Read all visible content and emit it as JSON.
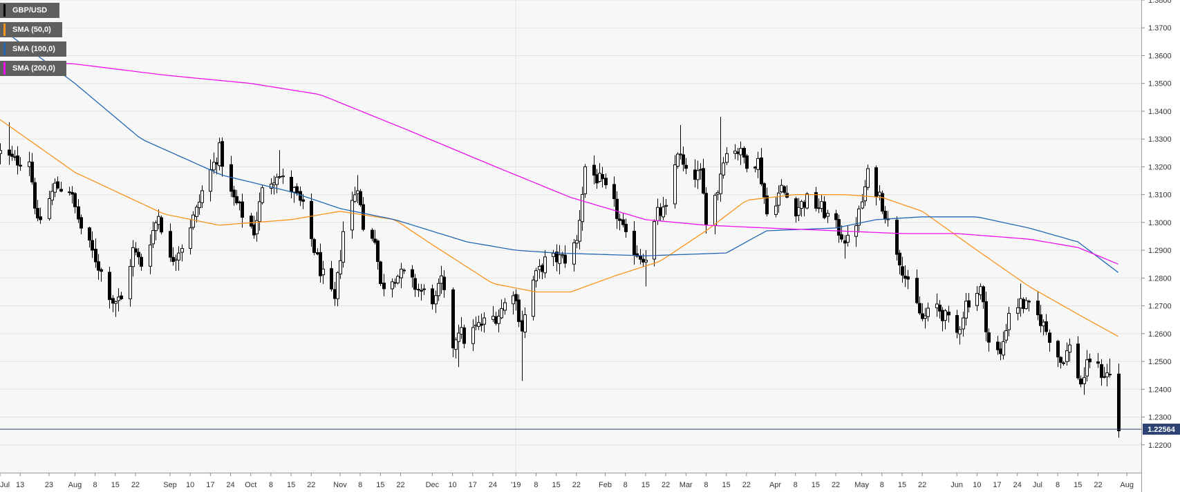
{
  "chart_data": {
    "type": "candlestick",
    "symbol": "GBP/USD",
    "last_price_label": "1.22564",
    "last_price": 1.22564,
    "ylim": [
      1.21,
      1.38
    ],
    "y_ticks": [
      "1.2200",
      "1.2300",
      "1.2400",
      "1.2500",
      "1.2600",
      "1.2700",
      "1.2800",
      "1.2900",
      "1.3000",
      "1.3100",
      "1.3200",
      "1.3300",
      "1.3400",
      "1.3500",
      "1.3600",
      "1.3700",
      "1.3800"
    ],
    "x_ticks": [
      {
        "date": "2018-07-06",
        "label": "Jul"
      },
      {
        "date": "2018-07-13",
        "label": "13"
      },
      {
        "date": "2018-07-23",
        "label": "23"
      },
      {
        "date": "2018-08-01",
        "label": "Aug"
      },
      {
        "date": "2018-08-08",
        "label": "8"
      },
      {
        "date": "2018-08-15",
        "label": "15"
      },
      {
        "date": "2018-08-22",
        "label": "22"
      },
      {
        "date": "2018-09-03",
        "label": "Sep"
      },
      {
        "date": "2018-09-10",
        "label": "10"
      },
      {
        "date": "2018-09-17",
        "label": "17"
      },
      {
        "date": "2018-09-24",
        "label": "24"
      },
      {
        "date": "2018-10-01",
        "label": "Oct"
      },
      {
        "date": "2018-10-08",
        "label": "8"
      },
      {
        "date": "2018-10-15",
        "label": "15"
      },
      {
        "date": "2018-10-22",
        "label": "22"
      },
      {
        "date": "2018-11-01",
        "label": "Nov"
      },
      {
        "date": "2018-11-08",
        "label": "8"
      },
      {
        "date": "2018-11-15",
        "label": "15"
      },
      {
        "date": "2018-11-22",
        "label": "22"
      },
      {
        "date": "2018-12-03",
        "label": "Dec"
      },
      {
        "date": "2018-12-10",
        "label": "10"
      },
      {
        "date": "2018-12-17",
        "label": "17"
      },
      {
        "date": "2018-12-24",
        "label": "24"
      },
      {
        "date": "2019-01-01",
        "label": "'19"
      },
      {
        "date": "2019-01-08",
        "label": "8"
      },
      {
        "date": "2019-01-15",
        "label": "15"
      },
      {
        "date": "2019-01-22",
        "label": "22"
      },
      {
        "date": "2019-02-01",
        "label": "Feb"
      },
      {
        "date": "2019-02-08",
        "label": "8"
      },
      {
        "date": "2019-02-15",
        "label": "15"
      },
      {
        "date": "2019-02-22",
        "label": "22"
      },
      {
        "date": "2019-03-01",
        "label": "Mar"
      },
      {
        "date": "2019-03-08",
        "label": "8"
      },
      {
        "date": "2019-03-15",
        "label": "15"
      },
      {
        "date": "2019-03-22",
        "label": "22"
      },
      {
        "date": "2019-04-01",
        "label": "Apr"
      },
      {
        "date": "2019-04-08",
        "label": "8"
      },
      {
        "date": "2019-04-15",
        "label": "15"
      },
      {
        "date": "2019-04-22",
        "label": "22"
      },
      {
        "date": "2019-05-01",
        "label": "May"
      },
      {
        "date": "2019-05-08",
        "label": "8"
      },
      {
        "date": "2019-05-15",
        "label": "15"
      },
      {
        "date": "2019-05-22",
        "label": "22"
      },
      {
        "date": "2019-06-03",
        "label": "Jun"
      },
      {
        "date": "2019-06-10",
        "label": "10"
      },
      {
        "date": "2019-06-17",
        "label": "17"
      },
      {
        "date": "2019-06-24",
        "label": "24"
      },
      {
        "date": "2019-07-01",
        "label": "Jul"
      },
      {
        "date": "2019-07-08",
        "label": "8"
      },
      {
        "date": "2019-07-15",
        "label": "15"
      },
      {
        "date": "2019-07-22",
        "label": "22"
      },
      {
        "date": "2019-08-01",
        "label": "Aug"
      }
    ],
    "xlim": [
      "2018-07-06",
      "2019-08-06"
    ],
    "close_anchors": [
      [
        "2018-07-06",
        1.325
      ],
      [
        "2018-07-11",
        1.322
      ],
      [
        "2018-07-16",
        1.323
      ],
      [
        "2018-07-19",
        1.299
      ],
      [
        "2018-07-25",
        1.313
      ],
      [
        "2018-07-30",
        1.312
      ],
      [
        "2018-08-03",
        1.298
      ],
      [
        "2018-08-08",
        1.287
      ],
      [
        "2018-08-14",
        1.272
      ],
      [
        "2018-08-17",
        1.272
      ],
      [
        "2018-08-21",
        1.29
      ],
      [
        "2018-08-24",
        1.285
      ],
      [
        "2018-08-30",
        1.303
      ],
      [
        "2018-09-03",
        1.286
      ],
      [
        "2018-09-07",
        1.292
      ],
      [
        "2018-09-12",
        1.304
      ],
      [
        "2018-09-14",
        1.311
      ],
      [
        "2018-09-20",
        1.326
      ],
      [
        "2018-09-24",
        1.31
      ],
      [
        "2018-09-28",
        1.303
      ],
      [
        "2018-10-02",
        1.297
      ],
      [
        "2018-10-05",
        1.311
      ],
      [
        "2018-10-10",
        1.318
      ],
      [
        "2018-10-12",
        1.315
      ],
      [
        "2018-10-16",
        1.311
      ],
      [
        "2018-10-19",
        1.305
      ],
      [
        "2018-10-25",
        1.283
      ],
      [
        "2018-10-30",
        1.271
      ],
      [
        "2018-11-02",
        1.297
      ],
      [
        "2018-11-07",
        1.314
      ],
      [
        "2018-11-09",
        1.297
      ],
      [
        "2018-11-13",
        1.295
      ],
      [
        "2018-11-15",
        1.277
      ],
      [
        "2018-11-20",
        1.281
      ],
      [
        "2018-11-23",
        1.281
      ],
      [
        "2018-11-28",
        1.276
      ],
      [
        "2018-12-04",
        1.272
      ],
      [
        "2018-12-06",
        1.279
      ],
      [
        "2018-12-10",
        1.256
      ],
      [
        "2018-12-12",
        1.262
      ],
      [
        "2018-12-14",
        1.258
      ],
      [
        "2018-12-18",
        1.262
      ],
      [
        "2018-12-21",
        1.264
      ],
      [
        "2018-12-26",
        1.267
      ],
      [
        "2018-12-31",
        1.276
      ],
      [
        "2019-01-03",
        1.262
      ],
      [
        "2019-01-07",
        1.279
      ],
      [
        "2019-01-11",
        1.286
      ],
      [
        "2019-01-15",
        1.287
      ],
      [
        "2019-01-18",
        1.287
      ],
      [
        "2019-01-22",
        1.293
      ],
      [
        "2019-01-25",
        1.32
      ],
      [
        "2019-01-30",
        1.315
      ],
      [
        "2019-02-04",
        1.306
      ],
      [
        "2019-02-08",
        1.294
      ],
      [
        "2019-02-13",
        1.288
      ],
      [
        "2019-02-15",
        1.288
      ],
      [
        "2019-02-19",
        1.303
      ],
      [
        "2019-02-22",
        1.304
      ],
      [
        "2019-02-26",
        1.326
      ],
      [
        "2019-03-01",
        1.317
      ],
      [
        "2019-03-06",
        1.317
      ],
      [
        "2019-03-08",
        1.302
      ],
      [
        "2019-03-12",
        1.312
      ],
      [
        "2019-03-14",
        1.324
      ],
      [
        "2019-03-18",
        1.327
      ],
      [
        "2019-03-22",
        1.322
      ],
      [
        "2019-03-26",
        1.322
      ],
      [
        "2019-03-29",
        1.303
      ],
      [
        "2019-04-03",
        1.312
      ],
      [
        "2019-04-08",
        1.305
      ],
      [
        "2019-04-12",
        1.308
      ],
      [
        "2019-04-17",
        1.305
      ],
      [
        "2019-04-23",
        1.297
      ],
      [
        "2019-04-26",
        1.293
      ],
      [
        "2019-04-30",
        1.303
      ],
      [
        "2019-05-03",
        1.317
      ],
      [
        "2019-05-07",
        1.31
      ],
      [
        "2019-05-10",
        1.3
      ],
      [
        "2019-05-14",
        1.287
      ],
      [
        "2019-05-17",
        1.277
      ],
      [
        "2019-05-22",
        1.265
      ],
      [
        "2019-05-27",
        1.27
      ],
      [
        "2019-06-03",
        1.26
      ],
      [
        "2019-06-06",
        1.271
      ],
      [
        "2019-06-11",
        1.276
      ],
      [
        "2019-06-14",
        1.257
      ],
      [
        "2019-06-18",
        1.252
      ],
      [
        "2019-06-21",
        1.268
      ],
      [
        "2019-06-25",
        1.271
      ],
      [
        "2019-06-28",
        1.269
      ],
      [
        "2019-07-02",
        1.265
      ],
      [
        "2019-07-05",
        1.259
      ],
      [
        "2019-07-09",
        1.25
      ],
      [
        "2019-07-12",
        1.255
      ],
      [
        "2019-07-16",
        1.242
      ],
      [
        "2019-07-19",
        1.251
      ],
      [
        "2019-07-23",
        1.246
      ],
      [
        "2019-07-26",
        1.245
      ],
      [
        "2019-07-29",
        1.2227
      ]
    ],
    "lows": [
      [
        "2018-08-15",
        1.266
      ],
      [
        "2018-10-30",
        1.27
      ],
      [
        "2018-12-12",
        1.248
      ],
      [
        "2019-01-03",
        1.243
      ],
      [
        "2019-02-15",
        1.277
      ],
      [
        "2019-03-08",
        1.296
      ],
      [
        "2019-04-25",
        1.287
      ],
      [
        "2019-06-18",
        1.251
      ],
      [
        "2019-07-17",
        1.238
      ],
      [
        "2019-07-29",
        1.2227
      ]
    ],
    "highs": [
      [
        "2018-07-09",
        1.336
      ],
      [
        "2018-09-20",
        1.33
      ],
      [
        "2018-10-11",
        1.326
      ],
      [
        "2018-11-07",
        1.317
      ],
      [
        "2019-01-25",
        1.321
      ],
      [
        "2019-02-27",
        1.335
      ],
      [
        "2019-03-13",
        1.338
      ],
      [
        "2019-05-03",
        1.318
      ],
      [
        "2019-06-25",
        1.278
      ],
      [
        "2019-07-26",
        1.251
      ]
    ],
    "series": [
      {
        "name": "GBP/USD",
        "color": "#000000",
        "style": "candlestick"
      },
      {
        "name": "SMA (50,0)",
        "color": "#f7941d",
        "points": [
          [
            "2018-07-06",
            1.337
          ],
          [
            "2018-08-01",
            1.318
          ],
          [
            "2018-09-01",
            1.303
          ],
          [
            "2018-09-20",
            1.299
          ],
          [
            "2018-10-15",
            1.301
          ],
          [
            "2018-11-01",
            1.304
          ],
          [
            "2018-11-20",
            1.301
          ],
          [
            "2018-12-03",
            1.292
          ],
          [
            "2018-12-24",
            1.278
          ],
          [
            "2019-01-08",
            1.275
          ],
          [
            "2019-01-20",
            1.275
          ],
          [
            "2019-02-05",
            1.281
          ],
          [
            "2019-02-20",
            1.286
          ],
          [
            "2019-03-08",
            1.297
          ],
          [
            "2019-03-22",
            1.308
          ],
          [
            "2019-04-08",
            1.31
          ],
          [
            "2019-04-25",
            1.31
          ],
          [
            "2019-05-08",
            1.309
          ],
          [
            "2019-05-22",
            1.304
          ],
          [
            "2019-06-10",
            1.29
          ],
          [
            "2019-06-28",
            1.277
          ],
          [
            "2019-07-15",
            1.267
          ],
          [
            "2019-07-29",
            1.259
          ]
        ]
      },
      {
        "name": "SMA (100,0)",
        "color": "#2266b3",
        "points": [
          [
            "2018-07-06",
            1.37
          ],
          [
            "2018-08-01",
            1.35
          ],
          [
            "2018-08-24",
            1.33
          ],
          [
            "2018-09-21",
            1.317
          ],
          [
            "2018-10-15",
            1.311
          ],
          [
            "2018-11-01",
            1.305
          ],
          [
            "2018-11-20",
            1.301
          ],
          [
            "2018-12-15",
            1.293
          ],
          [
            "2019-01-01",
            1.29
          ],
          [
            "2019-01-15",
            1.289
          ],
          [
            "2019-02-15",
            1.288
          ],
          [
            "2019-03-15",
            1.289
          ],
          [
            "2019-03-29",
            1.297
          ],
          [
            "2019-04-22",
            1.298
          ],
          [
            "2019-05-06",
            1.301
          ],
          [
            "2019-05-22",
            1.302
          ],
          [
            "2019-06-10",
            1.302
          ],
          [
            "2019-06-28",
            1.298
          ],
          [
            "2019-07-15",
            1.293
          ],
          [
            "2019-07-29",
            1.282
          ]
        ]
      },
      {
        "name": "SMA (200,0)",
        "color": "#ee10ee",
        "points": [
          [
            "2018-07-06",
            1.358
          ],
          [
            "2018-08-01",
            1.357
          ],
          [
            "2018-09-01",
            1.353
          ],
          [
            "2018-10-01",
            1.35
          ],
          [
            "2018-10-25",
            1.346
          ],
          [
            "2018-11-25",
            1.333
          ],
          [
            "2018-12-25",
            1.32
          ],
          [
            "2019-01-20",
            1.309
          ],
          [
            "2019-02-15",
            1.301
          ],
          [
            "2019-03-08",
            1.299
          ],
          [
            "2019-03-29",
            1.298
          ],
          [
            "2019-04-22",
            1.297
          ],
          [
            "2019-05-15",
            1.296
          ],
          [
            "2019-06-03",
            1.296
          ],
          [
            "2019-06-28",
            1.294
          ],
          [
            "2019-07-15",
            1.291
          ],
          [
            "2019-07-29",
            1.285
          ]
        ]
      }
    ]
  }
}
